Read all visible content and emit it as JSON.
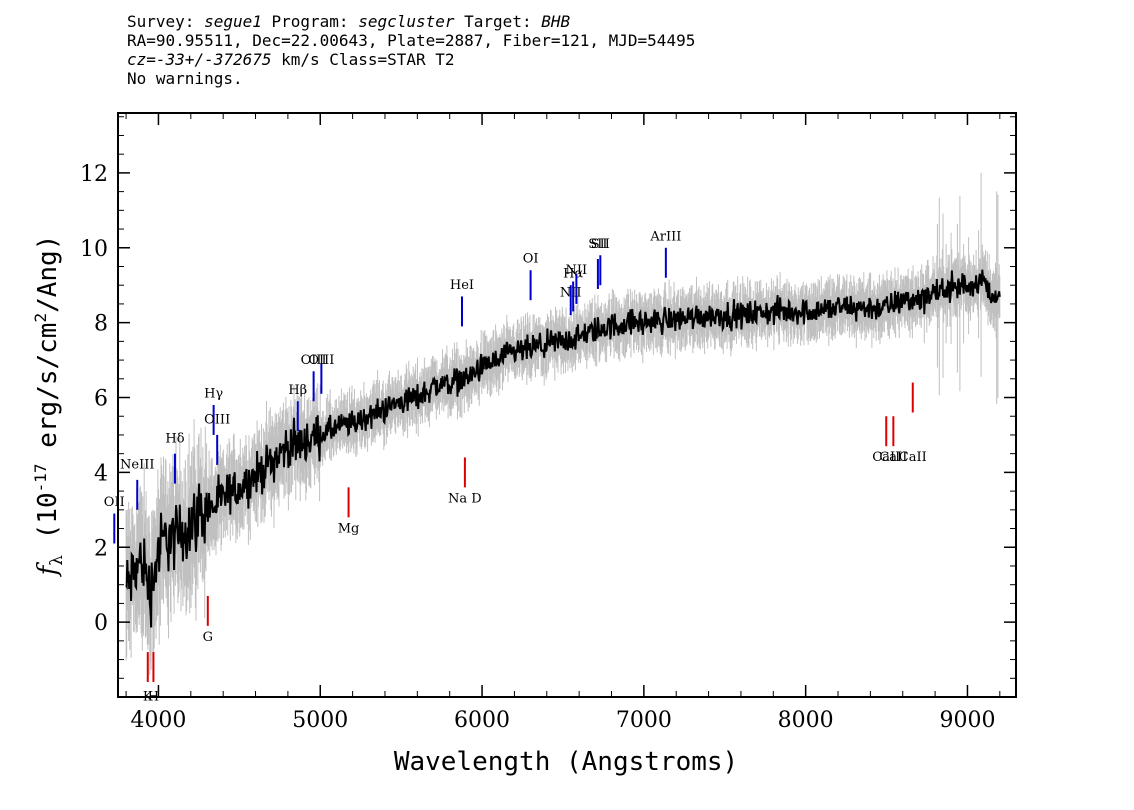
{
  "header": {
    "line1": {
      "survey_label": "Survey: ",
      "survey": "segue1",
      "program_label": " Program: ",
      "program": "segcluster",
      "target_label": " Target: ",
      "target": "BHB"
    },
    "line2": "RA=90.95511, Dec=22.00643, Plate=2887, Fiber=121, MJD=54495",
    "line3": {
      "cz_label": "cz=",
      "cz": "-33+/-372675",
      "rest": " km/s Class=STAR T2"
    },
    "line4": "No warnings."
  },
  "chart_data": {
    "type": "line",
    "title": "",
    "xlabel": "Wavelength (Angstroms)",
    "ylabel_parts": {
      "f": "f",
      "lambda_sub": "λ",
      "pre": " (10",
      "exp": "-17",
      "mid": " erg/s/cm",
      "exp2": "2",
      "post": "/Ang)"
    },
    "xlim": [
      3750,
      9300
    ],
    "ylim": [
      -2,
      13.6
    ],
    "xticks": [
      4000,
      5000,
      6000,
      7000,
      8000,
      9000
    ],
    "yticks": [
      0,
      2,
      4,
      6,
      8,
      10,
      12
    ],
    "colors": {
      "spectrum": "#000000",
      "error": "#c0c0c0",
      "emission": "#0000cc",
      "absorption": "#dd0000"
    },
    "series": [
      {
        "name": "",
        "x": [
          3800,
          3850,
          3900,
          3950,
          4000,
          4050,
          4100,
          4150,
          4200,
          4250,
          4300,
          4350,
          4400,
          4450,
          4500,
          4600,
          4700,
          4800,
          4900,
          5000,
          5100,
          5200,
          5300,
          5400,
          5500,
          5600,
          5700,
          5800,
          5900,
          6000,
          6100,
          6200,
          6300,
          6400,
          6500,
          6600,
          6700,
          6800,
          6900,
          7000,
          7200,
          7400,
          7600,
          7800,
          8000,
          8200,
          8400,
          8500,
          8600,
          8700,
          8800,
          8900,
          9000,
          9100,
          9200
        ],
        "y": [
          0.9,
          1.3,
          1.7,
          0.8,
          1.9,
          2.3,
          2.2,
          2.4,
          2.6,
          2.9,
          3.0,
          3.1,
          3.3,
          3.5,
          3.6,
          3.9,
          4.3,
          4.7,
          4.8,
          5.0,
          5.2,
          5.3,
          5.5,
          5.7,
          5.9,
          6.0,
          6.3,
          6.4,
          6.5,
          6.8,
          7.0,
          7.2,
          7.3,
          7.4,
          7.5,
          7.6,
          7.8,
          7.9,
          8.0,
          8.0,
          8.1,
          8.2,
          8.2,
          8.3,
          8.3,
          8.4,
          8.4,
          8.4,
          8.6,
          8.6,
          8.8,
          9.0,
          9.0,
          9.1,
          8.6
        ]
      }
    ],
    "emission_lines": [
      {
        "label": "OII",
        "x": 3727,
        "y1": 2.1,
        "y2": 2.9,
        "label_y": 3.1
      },
      {
        "label": "NeIII",
        "x": 3869,
        "y1": 3.0,
        "y2": 3.8,
        "label_y": 4.1
      },
      {
        "label": "Hδ",
        "x": 4102,
        "y1": 3.7,
        "y2": 4.5,
        "label_y": 4.8
      },
      {
        "label": "Hγ",
        "x": 4341,
        "y1": 5.0,
        "y2": 5.8,
        "label_y": 6.0
      },
      {
        "label": "OIII",
        "x": 4363,
        "y1": 4.2,
        "y2": 5.0,
        "label_y": 5.3
      },
      {
        "label": "Hβ",
        "x": 4861,
        "y1": 5.1,
        "y2": 5.9,
        "label_y": 6.1
      },
      {
        "label": "OIII",
        "x": 4959,
        "y1": 5.9,
        "y2": 6.7,
        "label_y": 6.9
      },
      {
        "label": "OIII",
        "x": 5007,
        "y1": 6.1,
        "y2": 6.9,
        "label_y": 6.9
      },
      {
        "label": "HeI",
        "x": 5876,
        "y1": 7.9,
        "y2": 8.7,
        "label_y": 8.9
      },
      {
        "label": "OI",
        "x": 6300,
        "y1": 8.6,
        "y2": 9.4,
        "label_y": 9.6
      },
      {
        "label": "NII",
        "x": 6548,
        "y1": 8.2,
        "y2": 9.0,
        "label_y": 8.7
      },
      {
        "label": "Hα",
        "x": 6563,
        "y1": 8.3,
        "y2": 9.1,
        "label_y": 9.2
      },
      {
        "label": "NII",
        "x": 6583,
        "y1": 8.5,
        "y2": 9.3,
        "label_y": 9.3
      },
      {
        "label": "SII",
        "x": 6716,
        "y1": 8.9,
        "y2": 9.7,
        "label_y": 10.0
      },
      {
        "label": "SII",
        "x": 6731,
        "y1": 9.0,
        "y2": 9.8,
        "label_y": 10.0
      },
      {
        "label": "ArIII",
        "x": 7136,
        "y1": 9.2,
        "y2": 10.0,
        "label_y": 10.2
      }
    ],
    "absorption_lines": [
      {
        "label": "K",
        "x": 3934,
        "y1": -1.6,
        "y2": -0.8,
        "label_y": -2.1
      },
      {
        "label": "H",
        "x": 3969,
        "y1": -1.6,
        "y2": -0.8,
        "label_y": -2.1
      },
      {
        "label": "G",
        "x": 4305,
        "y1": -0.1,
        "y2": 0.7,
        "label_y": -0.5
      },
      {
        "label": "Mg",
        "x": 5175,
        "y1": 2.8,
        "y2": 3.6,
        "label_y": 2.4
      },
      {
        "label": "Na D",
        "x": 5894,
        "y1": 3.6,
        "y2": 4.4,
        "label_y": 3.2
      },
      {
        "label": "CaII",
        "x": 8498,
        "y1": 4.7,
        "y2": 5.5,
        "label_y": 4.3
      },
      {
        "label": "CaII",
        "x": 8542,
        "y1": 4.7,
        "y2": 5.5,
        "label_y": 4.3
      },
      {
        "label": "CaII",
        "x": 8662,
        "y1": 5.6,
        "y2": 6.4,
        "label_y": 4.3
      }
    ]
  }
}
